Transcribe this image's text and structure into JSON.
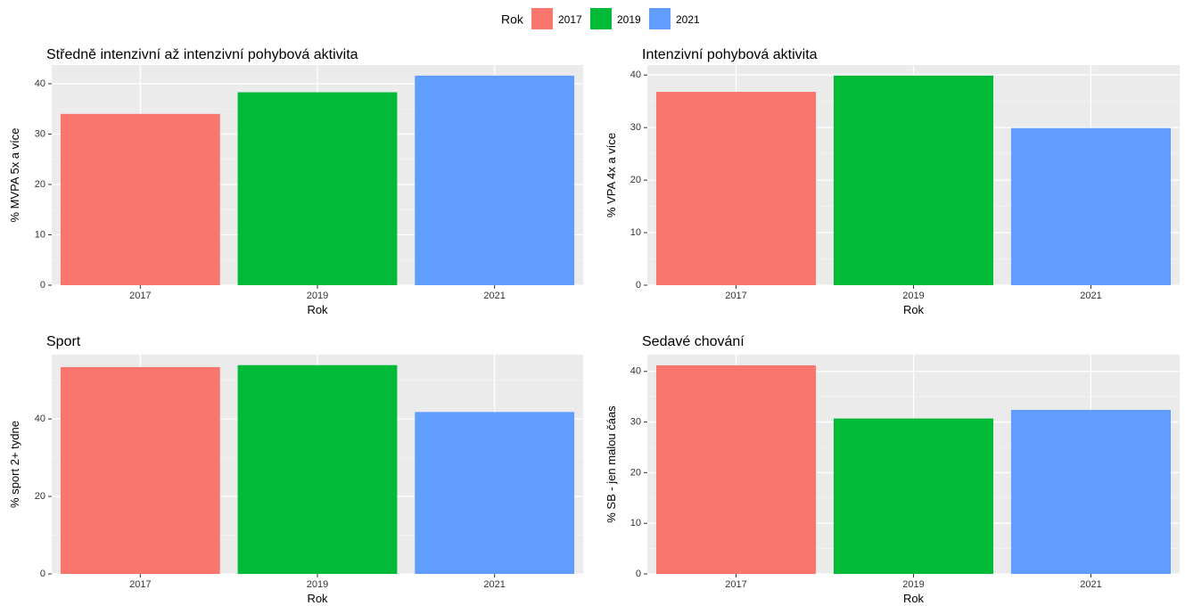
{
  "legend": {
    "title": "Rok",
    "items": [
      {
        "label": "2017",
        "color": "#F8766D"
      },
      {
        "label": "2019",
        "color": "#00BA38"
      },
      {
        "label": "2021",
        "color": "#619CFF"
      }
    ]
  },
  "chart_data": [
    {
      "type": "bar",
      "title": "Středně intenzivní až intenzivní pohybová aktivita",
      "xlabel": "Rok",
      "ylabel": "% MVPA 5x a více",
      "categories": [
        "2017",
        "2019",
        "2021"
      ],
      "values": [
        34,
        38.3,
        41.6
      ],
      "ylim": [
        0,
        43.7
      ],
      "yticks": [
        0,
        10,
        20,
        30,
        40
      ],
      "grid": true,
      "legend": "top"
    },
    {
      "type": "bar",
      "title": "Intenzivní pohybová aktivita",
      "xlabel": "Rok",
      "ylabel": "% VPA 4x a více",
      "categories": [
        "2017",
        "2019",
        "2021"
      ],
      "values": [
        36.8,
        39.9,
        29.9
      ],
      "ylim": [
        0,
        41.9
      ],
      "yticks": [
        0,
        10,
        20,
        30,
        40
      ],
      "grid": true,
      "legend": "top"
    },
    {
      "type": "bar",
      "title": "Sport",
      "xlabel": "Rok",
      "ylabel": "% sport 2+ tydne",
      "categories": [
        "2017",
        "2019",
        "2021"
      ],
      "values": [
        53.4,
        53.9,
        41.8
      ],
      "ylim": [
        0,
        56.6
      ],
      "yticks": [
        0,
        20,
        40
      ],
      "grid": true,
      "legend": "top"
    },
    {
      "type": "bar",
      "title": "Sedavé chování",
      "xlabel": "Rok",
      "ylabel": "% SB - jen malou čáas",
      "categories": [
        "2017",
        "2019",
        "2021"
      ],
      "values": [
        41.2,
        30.7,
        32.4
      ],
      "ylim": [
        0,
        43.3
      ],
      "yticks": [
        0,
        10,
        20,
        30,
        40
      ],
      "grid": true,
      "legend": "top"
    }
  ]
}
